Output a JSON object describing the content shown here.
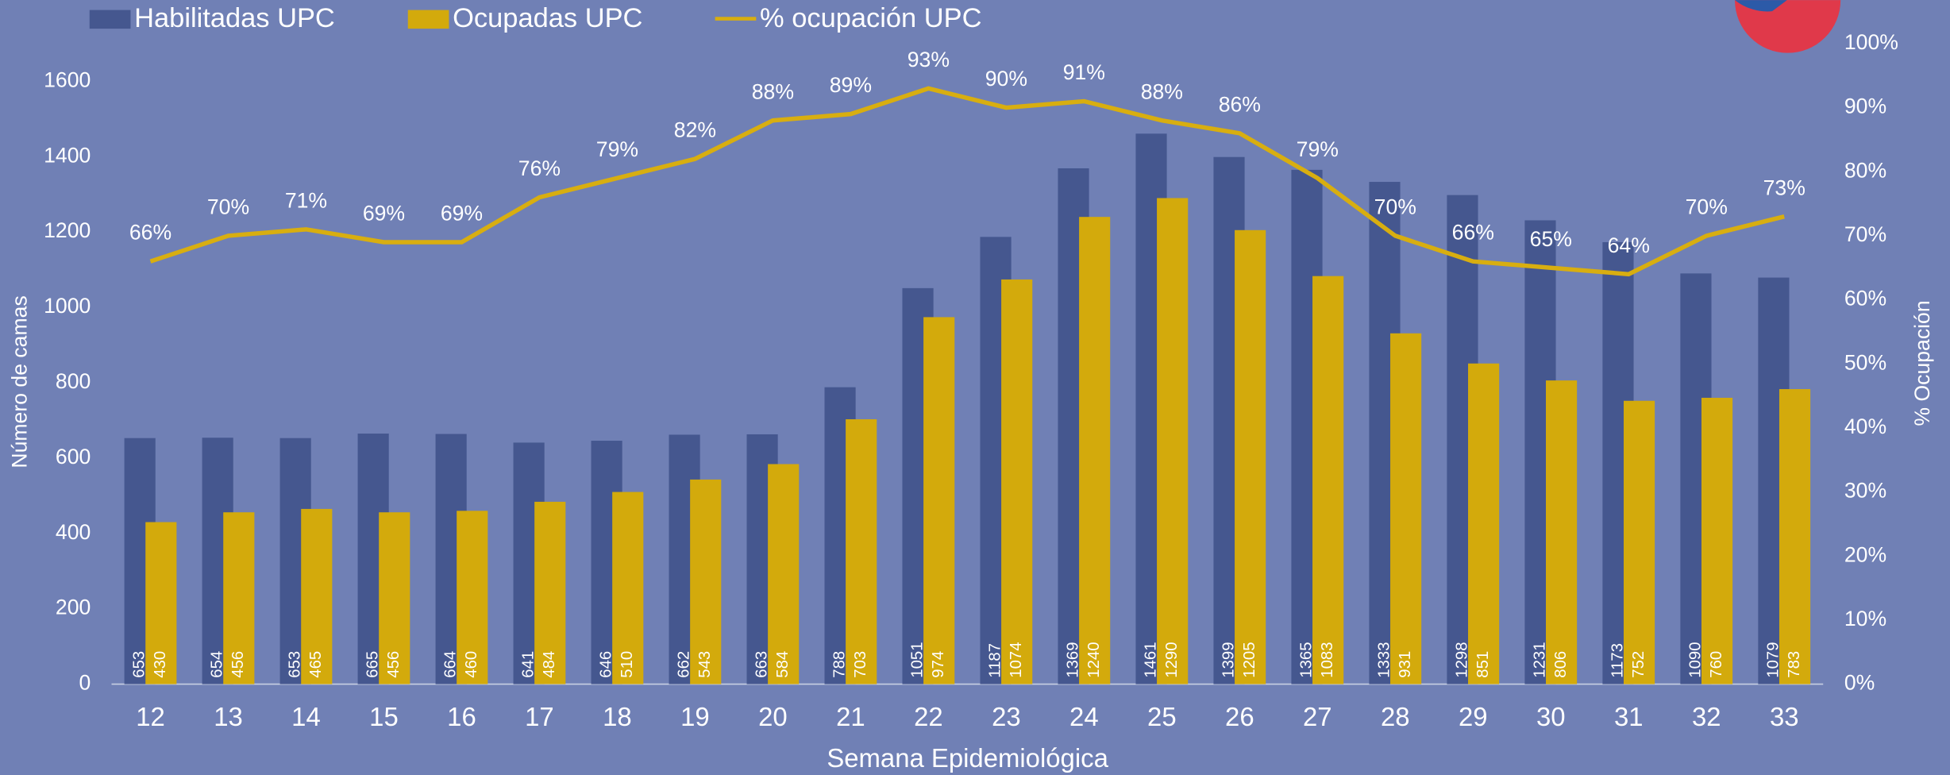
{
  "chart_data": {
    "type": "bar_line",
    "x_label": "Semana Epidemiológica",
    "y_label": "Número de camas",
    "y2_label": "% Ocupación",
    "categories": [
      "12",
      "13",
      "14",
      "15",
      "16",
      "17",
      "18",
      "19",
      "20",
      "21",
      "22",
      "23",
      "24",
      "25",
      "26",
      "27",
      "28",
      "29",
      "30",
      "31",
      "32",
      "33"
    ],
    "series": [
      {
        "name": "Habilitadas UPC",
        "type": "bar",
        "color": "#45578f",
        "values": [
          653,
          654,
          653,
          665,
          664,
          641,
          646,
          662,
          663,
          788,
          1051,
          1187,
          1369,
          1461,
          1399,
          1365,
          1333,
          1298,
          1231,
          1173,
          1090,
          1079
        ]
      },
      {
        "name": "Ocupadas UPC",
        "type": "bar",
        "color": "#d3aa0c",
        "values": [
          430,
          456,
          465,
          456,
          460,
          484,
          510,
          543,
          584,
          703,
          974,
          1074,
          1240,
          1290,
          1205,
          1083,
          931,
          851,
          806,
          752,
          760,
          783
        ]
      },
      {
        "name": "% ocupación UPC",
        "type": "line",
        "axis": "y2",
        "color": "#d8ae10",
        "values": [
          66,
          70,
          71,
          69,
          69,
          76,
          79,
          82,
          88,
          89,
          93,
          90,
          91,
          88,
          86,
          79,
          70,
          66,
          65,
          64,
          70,
          73
        ],
        "value_labels": [
          "66%",
          "70%",
          "71%",
          "69%",
          "69%",
          "76%",
          "79%",
          "82%",
          "88%",
          "89%",
          "93%",
          "90%",
          "91%",
          "88%",
          "86%",
          "79%",
          "70%",
          "66%",
          "65%",
          "64%",
          "70%",
          "73%"
        ]
      }
    ],
    "ylim": [
      0,
      1700
    ],
    "yticks": [
      0,
      200,
      400,
      600,
      800,
      1000,
      1200,
      1400,
      1600
    ],
    "y2lim": [
      0,
      100
    ],
    "y2ticks": [
      {
        "value": 0,
        "label": "0%"
      },
      {
        "value": 10,
        "label": "10%"
      },
      {
        "value": 20,
        "label": "20%"
      },
      {
        "value": 30,
        "label": "30%"
      },
      {
        "value": 40,
        "label": "40%"
      },
      {
        "value": 50,
        "label": "50%"
      },
      {
        "value": 60,
        "label": "60%"
      },
      {
        "value": 70,
        "label": "70%"
      },
      {
        "value": 80,
        "label": "80%"
      },
      {
        "value": 90,
        "label": "90%"
      },
      {
        "value": 100,
        "label": "100%"
      }
    ]
  }
}
